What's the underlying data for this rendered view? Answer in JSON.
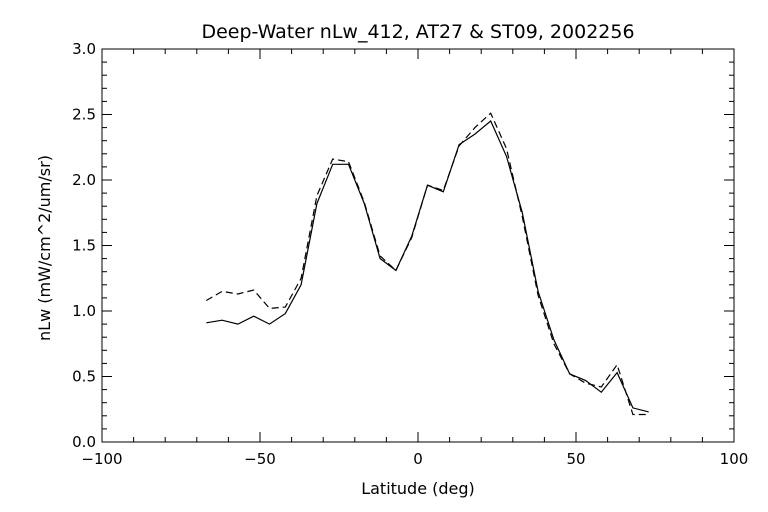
{
  "chart_data": {
    "type": "line",
    "title": "Deep-Water nLw_412, AT27 & ST09, 2002256",
    "xlabel": "Latitude (deg)",
    "ylabel": "nLw (mW/cm^2/um/sr)",
    "xlim": [
      -100,
      100
    ],
    "ylim": [
      0.0,
      3.0
    ],
    "x_ticks": [
      -100,
      -50,
      0,
      50,
      100
    ],
    "x_tick_labels": [
      "−100",
      "−50",
      "0",
      "50",
      "100"
    ],
    "y_ticks": [
      0.0,
      0.5,
      1.0,
      1.5,
      2.0,
      2.5,
      3.0
    ],
    "y_tick_labels": [
      "0.0",
      "0.5",
      "1.0",
      "1.5",
      "2.0",
      "2.5",
      "3.0"
    ],
    "x_minor_step": 10,
    "y_minor_step": 0.1,
    "grid": false,
    "series": [
      {
        "style": "solid",
        "x": [
          -67,
          -62,
          -57,
          -52,
          -47,
          -42,
          -37,
          -32,
          -27,
          -22,
          -17,
          -12,
          -7,
          -2,
          3,
          8,
          13,
          18,
          23,
          28,
          33,
          38,
          43,
          48,
          53,
          58,
          63,
          68,
          73
        ],
        "y": [
          0.91,
          0.93,
          0.9,
          0.96,
          0.9,
          0.98,
          1.2,
          1.82,
          2.12,
          2.12,
          1.82,
          1.4,
          1.31,
          1.57,
          1.96,
          1.91,
          2.27,
          2.35,
          2.45,
          2.18,
          1.75,
          1.15,
          0.78,
          0.52,
          0.47,
          0.38,
          0.53,
          0.26,
          0.23
        ]
      },
      {
        "style": "dashed",
        "x": [
          -67,
          -62,
          -57,
          -52,
          -47,
          -42,
          -37,
          -32,
          -27,
          -22,
          -17,
          -12,
          -7,
          -2,
          3,
          8,
          13,
          18,
          23,
          28,
          33,
          38,
          43,
          48,
          53,
          58,
          63,
          68,
          73
        ],
        "y": [
          1.08,
          1.15,
          1.13,
          1.16,
          1.02,
          1.03,
          1.25,
          1.88,
          2.16,
          2.14,
          1.83,
          1.42,
          1.31,
          1.56,
          1.96,
          1.92,
          2.26,
          2.4,
          2.51,
          2.24,
          1.72,
          1.12,
          0.75,
          0.52,
          0.45,
          0.42,
          0.59,
          0.21,
          0.21
        ]
      }
    ]
  }
}
